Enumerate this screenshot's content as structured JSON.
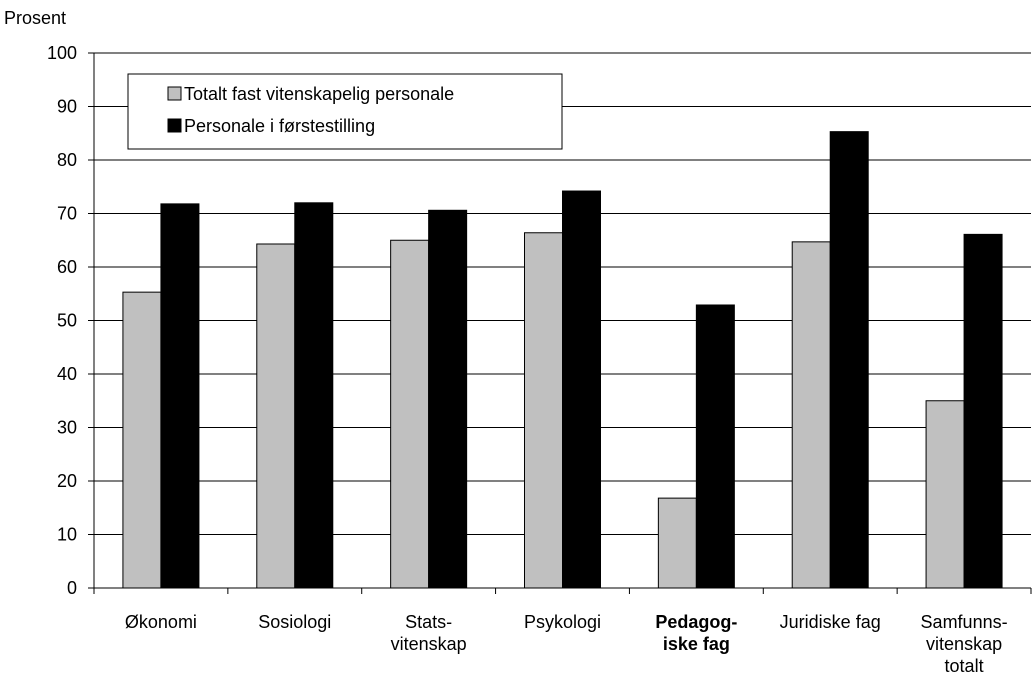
{
  "chart_data": {
    "type": "bar",
    "ylabel": "Prosent",
    "ylim": [
      0,
      100
    ],
    "yticks": [
      "0",
      "10",
      "20",
      "30",
      "40",
      "50",
      "60",
      "70",
      "80",
      "90",
      "100"
    ],
    "grid": true,
    "legend_position": "top-left",
    "categories": [
      {
        "lines": [
          "Økonomi"
        ],
        "bold": false
      },
      {
        "lines": [
          "Sosiologi"
        ],
        "bold": false
      },
      {
        "lines": [
          "Stats-",
          "vitenskap"
        ],
        "bold": false
      },
      {
        "lines": [
          "Psykologi"
        ],
        "bold": false
      },
      {
        "lines": [
          "Pedagog-",
          "iske fag"
        ],
        "bold": true
      },
      {
        "lines": [
          "Juridiske fag"
        ],
        "bold": false
      },
      {
        "lines": [
          "Samfunns-",
          "vitenskap",
          "totalt"
        ],
        "bold": false
      }
    ],
    "series": [
      {
        "name": "Totalt fast vitenskapelig personale",
        "color": "#c0c0c0",
        "values": [
          55.3,
          64.3,
          65.0,
          66.4,
          16.8,
          64.7,
          35.0
        ]
      },
      {
        "name": "Personale i førstestilling",
        "color": "#000000",
        "values": [
          71.8,
          72.0,
          70.6,
          74.2,
          52.9,
          85.3,
          66.1
        ]
      }
    ]
  }
}
